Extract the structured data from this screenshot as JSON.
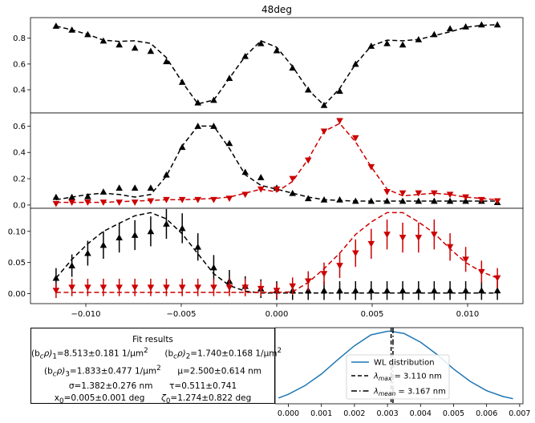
{
  "chart_data": [
    {
      "type": "scatter",
      "title": "48deg",
      "xlim": [
        -0.0129,
        0.0129
      ],
      "ylim": [
        0.22,
        0.96
      ],
      "yticks": [
        "0.4",
        "0.6",
        "0.8"
      ],
      "ytick_values": [
        0.4,
        0.6,
        0.8
      ],
      "x": [
        -0.01156,
        -0.01073,
        -0.0099,
        -0.00908,
        -0.00825,
        -0.00743,
        -0.0066,
        -0.00578,
        -0.00495,
        -0.00413,
        -0.0033,
        -0.00248,
        -0.00165,
        -0.00083,
        0.0,
        0.00083,
        0.00165,
        0.00248,
        0.0033,
        0.00413,
        0.00495,
        0.00578,
        0.0066,
        0.00743,
        0.00825,
        0.00908,
        0.0099,
        0.01073,
        0.01156
      ],
      "series": [
        {
          "marker": "triangle-up",
          "color": "#000000",
          "values": [
            0.895,
            0.865,
            0.83,
            0.78,
            0.75,
            0.725,
            0.7,
            0.62,
            0.46,
            0.3,
            0.32,
            0.49,
            0.66,
            0.76,
            0.705,
            0.57,
            0.4,
            0.28,
            0.39,
            0.6,
            0.74,
            0.76,
            0.75,
            0.79,
            0.83,
            0.875,
            0.89,
            0.905,
            0.905
          ],
          "fit": [
            0.895,
            0.865,
            0.83,
            0.785,
            0.775,
            0.78,
            0.76,
            0.65,
            0.46,
            0.29,
            0.32,
            0.49,
            0.66,
            0.78,
            0.73,
            0.58,
            0.4,
            0.28,
            0.41,
            0.6,
            0.74,
            0.785,
            0.78,
            0.79,
            0.82,
            0.85,
            0.885,
            0.9,
            0.905
          ]
        }
      ]
    },
    {
      "type": "scatter",
      "xlim": [
        -0.0129,
        0.0129
      ],
      "ylim": [
        -0.025,
        0.7
      ],
      "yticks": [
        "0.0",
        "0.2",
        "0.4",
        "0.6"
      ],
      "ytick_values": [
        0.0,
        0.2,
        0.4,
        0.6
      ],
      "x": [
        -0.01156,
        -0.01073,
        -0.0099,
        -0.00908,
        -0.00825,
        -0.00743,
        -0.0066,
        -0.00578,
        -0.00495,
        -0.00413,
        -0.0033,
        -0.00248,
        -0.00165,
        -0.00083,
        0.0,
        0.00083,
        0.00165,
        0.00248,
        0.0033,
        0.00413,
        0.00495,
        0.00578,
        0.0066,
        0.00743,
        0.00825,
        0.00908,
        0.0099,
        0.01073,
        0.01156
      ],
      "series": [
        {
          "marker": "triangle-up",
          "color": "#000000",
          "values": [
            0.06,
            0.06,
            0.065,
            0.1,
            0.13,
            0.13,
            0.13,
            0.23,
            0.44,
            0.6,
            0.6,
            0.47,
            0.25,
            0.21,
            0.13,
            0.09,
            0.05,
            0.04,
            0.04,
            0.03,
            0.03,
            0.03,
            0.03,
            0.03,
            0.03,
            0.03,
            0.03,
            0.03,
            0.02
          ],
          "fit": [
            0.04,
            0.06,
            0.08,
            0.09,
            0.08,
            0.06,
            0.08,
            0.22,
            0.45,
            0.6,
            0.6,
            0.43,
            0.23,
            0.15,
            0.12,
            0.09,
            0.06,
            0.04,
            0.035,
            0.03,
            0.03,
            0.03,
            0.03,
            0.03,
            0.03,
            0.03,
            0.03,
            0.03,
            0.03
          ]
        },
        {
          "marker": "triangle-down",
          "color": "#cc0000",
          "values": [
            0.01,
            0.02,
            0.02,
            0.02,
            0.02,
            0.02,
            0.03,
            0.04,
            0.04,
            0.04,
            0.04,
            0.05,
            0.08,
            0.12,
            0.12,
            0.2,
            0.34,
            0.56,
            0.64,
            0.51,
            0.29,
            0.1,
            0.09,
            0.09,
            0.09,
            0.08,
            0.06,
            0.04,
            0.03
          ],
          "fit": [
            0.02,
            0.02,
            0.02,
            0.02,
            0.025,
            0.03,
            0.035,
            0.04,
            0.04,
            0.045,
            0.05,
            0.06,
            0.09,
            0.12,
            0.1,
            0.18,
            0.35,
            0.56,
            0.62,
            0.48,
            0.29,
            0.12,
            0.07,
            0.08,
            0.09,
            0.08,
            0.06,
            0.05,
            0.04
          ]
        }
      ]
    },
    {
      "type": "scatter",
      "xlim": [
        -0.0129,
        0.0129
      ],
      "ylim": [
        -0.016,
        0.137
      ],
      "yticks": [
        "0.00",
        "0.05",
        "0.10"
      ],
      "ytick_values": [
        0.0,
        0.05,
        0.1
      ],
      "xticks": [
        "−0.010",
        "−0.005",
        "0.000",
        "0.005",
        "0.010"
      ],
      "xtick_values": [
        -0.01,
        -0.005,
        0.0,
        0.005,
        0.01
      ],
      "x": [
        -0.01156,
        -0.01073,
        -0.0099,
        -0.00908,
        -0.00825,
        -0.00743,
        -0.0066,
        -0.00578,
        -0.00495,
        -0.00413,
        -0.0033,
        -0.00248,
        -0.00165,
        -0.00083,
        0.0,
        0.00083,
        0.00165,
        0.00248,
        0.0033,
        0.00413,
        0.00495,
        0.00578,
        0.0066,
        0.00743,
        0.00825,
        0.00908,
        0.0099,
        0.01073,
        0.01156
      ],
      "series": [
        {
          "marker": "triangle-up",
          "color": "#000000",
          "errorbars": true,
          "values": [
            0.025,
            0.045,
            0.065,
            0.078,
            0.09,
            0.094,
            0.1,
            0.112,
            0.105,
            0.075,
            0.042,
            0.02,
            0.012,
            0.008,
            0.005,
            0.005,
            0.005,
            0.005,
            0.005,
            0.005,
            0.005,
            0.005,
            0.005,
            0.005,
            0.005,
            0.005,
            0.005,
            0.005,
            0.005
          ],
          "err": [
            0.016,
            0.018,
            0.02,
            0.022,
            0.024,
            0.024,
            0.024,
            0.024,
            0.024,
            0.022,
            0.02,
            0.018,
            0.016,
            0.015,
            0.015,
            0.015,
            0.015,
            0.015,
            0.015,
            0.015,
            0.015,
            0.015,
            0.015,
            0.015,
            0.015,
            0.015,
            0.015,
            0.015,
            0.015
          ],
          "fit": [
            0.025,
            0.055,
            0.08,
            0.1,
            0.113,
            0.125,
            0.13,
            0.12,
            0.096,
            0.064,
            0.032,
            0.013,
            0.004,
            0.001,
            0.001,
            0.001,
            0.001,
            0.001,
            0.001,
            0.001,
            0.001,
            0.001,
            0.001,
            0.001,
            0.001,
            0.001,
            0.001,
            0.001,
            0.001
          ]
        },
        {
          "marker": "triangle-down",
          "color": "#cc0000",
          "errorbars": true,
          "values": [
            0.005,
            0.01,
            0.01,
            0.01,
            0.01,
            0.01,
            0.01,
            0.01,
            0.01,
            0.01,
            0.01,
            0.01,
            0.01,
            0.008,
            0.005,
            0.012,
            0.02,
            0.032,
            0.045,
            0.065,
            0.08,
            0.095,
            0.09,
            0.09,
            0.095,
            0.075,
            0.055,
            0.035,
            0.025
          ],
          "err": [
            0.012,
            0.014,
            0.014,
            0.014,
            0.014,
            0.014,
            0.014,
            0.014,
            0.014,
            0.014,
            0.014,
            0.014,
            0.014,
            0.012,
            0.012,
            0.014,
            0.016,
            0.018,
            0.02,
            0.022,
            0.024,
            0.024,
            0.024,
            0.024,
            0.024,
            0.022,
            0.02,
            0.018,
            0.016
          ],
          "fit": [
            0.002,
            0.002,
            0.002,
            0.002,
            0.002,
            0.002,
            0.002,
            0.002,
            0.002,
            0.002,
            0.002,
            0.002,
            0.002,
            0.002,
            0.002,
            0.003,
            0.018,
            0.04,
            0.065,
            0.095,
            0.115,
            0.13,
            0.13,
            0.115,
            0.097,
            0.072,
            0.05,
            0.035,
            0.025
          ]
        }
      ]
    },
    {
      "type": "line",
      "xlim": [
        -0.0004,
        0.0071
      ],
      "ylim": [
        0,
        1.05
      ],
      "xticks": [
        "0.000",
        "0.001",
        "0.002",
        "0.003",
        "0.004",
        "0.005",
        "0.006",
        "0.007"
      ],
      "xtick_values": [
        0.0,
        0.001,
        0.002,
        0.003,
        0.004,
        0.005,
        0.006,
        0.007
      ],
      "x": [
        -0.0003,
        0.0,
        0.0005,
        0.001,
        0.0015,
        0.002,
        0.0025,
        0.003,
        0.0031,
        0.0035,
        0.004,
        0.0045,
        0.005,
        0.0055,
        0.006,
        0.0065,
        0.0068
      ],
      "series": [
        {
          "name": "WL distribution",
          "color": "#1f77b4",
          "values": [
            0.08,
            0.13,
            0.25,
            0.41,
            0.61,
            0.8,
            0.95,
            1.0,
            1.0,
            0.97,
            0.85,
            0.68,
            0.48,
            0.31,
            0.18,
            0.1,
            0.07
          ]
        },
        {
          "name": "λ_max = 3.110 nm",
          "color": "#000000",
          "dash": "5,3",
          "vline_x": 0.00311
        },
        {
          "name": "λ_mean = 3.167 nm",
          "color": "#000000",
          "dash": "7,3,1.5,3",
          "vline_x": 0.003167
        }
      ],
      "legend": "center"
    }
  ],
  "fit_results": {
    "title": "Fit results",
    "line1_a": "(b",
    "line1_a_sub1": "c",
    "line1_a_mid": "ρ)",
    "line1_a_sub2": "1",
    "line1_a_val": "=8.513±0.181 1/μm",
    "line1_a_sup": "2",
    "line1_b": "(b",
    "line1_b_sub1": "c",
    "line1_b_mid": "ρ)",
    "line1_b_sub2": "2",
    "line1_b_val": "=1.740±0.168 1/μm",
    "line1_b_sup": "2",
    "line2_a": "(b",
    "line2_a_sub1": "c",
    "line2_a_mid": "ρ)",
    "line2_a_sub2": "3",
    "line2_a_val": "=1.833±0.477 1/μm",
    "line2_a_sup": "2",
    "line2_b": "μ=2.500±0.614 nm",
    "line3_a": "σ=1.382±0.276 nm",
    "line3_b": "τ=0.511±0.741",
    "line4_a": "x",
    "line4_a_sub": "0",
    "line4_a_val": "=0.005±0.001 deg",
    "line4_b": "ζ",
    "line4_b_sub": "0",
    "line4_b_val": "=1.274±0.822  deg"
  },
  "legend": {
    "wl": "WL distribution",
    "max_label": "λ",
    "max_sub": "max",
    "max_val": " = 3.110 nm",
    "mean_label": "λ",
    "mean_sub": "mean",
    "mean_val": " = 3.167 nm"
  }
}
